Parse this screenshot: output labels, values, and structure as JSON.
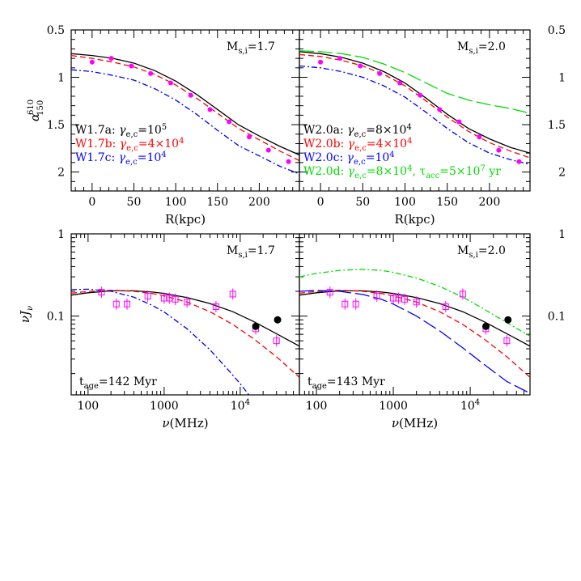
{
  "chart_data": [
    {
      "type": "line",
      "panel": "top-left",
      "xlabel": "R(kpc)",
      "ylabel": "α",
      "ylabel_sup": "610",
      "ylabel_sub": "150",
      "xlim": [
        -25,
        248
      ],
      "ylim": [
        0.5,
        2.2
      ],
      "y_inverted": true,
      "xticks": [
        "0",
        "50",
        "100",
        "150",
        "200"
      ],
      "yticks": [
        "0.5",
        "1",
        "1.5",
        "2"
      ],
      "mach_label": "M",
      "mach_sub": "s,i",
      "mach_value": "=1.7",
      "legend": [
        {
          "name": "W1.7a:",
          "param": "γ",
          "param_sub": "e,c",
          "value": "=10",
          "value_sup": "5",
          "color": "#000000"
        },
        {
          "name": "W1.7b:",
          "param": "γ",
          "param_sub": "e,c",
          "value": "=4×10",
          "value_sup": "4",
          "color": "#ff0000"
        },
        {
          "name": "W1.7c:",
          "param": "γ",
          "param_sub": "e,c",
          "value": "=10",
          "value_sup": "4",
          "color": "#0000ff"
        }
      ],
      "series": [
        {
          "key": "a",
          "color": "#000000",
          "dash": "",
          "x": [
            -25,
            0,
            25,
            50,
            75,
            100,
            125,
            150,
            175,
            200,
            225,
            248
          ],
          "y": [
            0.75,
            0.77,
            0.8,
            0.85,
            0.93,
            1.04,
            1.18,
            1.34,
            1.5,
            1.62,
            1.73,
            1.82
          ]
        },
        {
          "key": "b",
          "color": "#ff0000",
          "dash": "7,4",
          "x": [
            -25,
            0,
            25,
            50,
            75,
            100,
            125,
            150,
            175,
            200,
            225,
            248
          ],
          "y": [
            0.77,
            0.8,
            0.84,
            0.89,
            0.97,
            1.08,
            1.22,
            1.38,
            1.54,
            1.66,
            1.78,
            1.88
          ]
        },
        {
          "key": "c",
          "color": "#0000ff",
          "dash": "7,3,2,3",
          "x": [
            -25,
            0,
            25,
            50,
            75,
            100,
            125,
            150,
            175,
            200,
            225,
            248
          ],
          "y": [
            0.92,
            0.94,
            0.98,
            1.03,
            1.12,
            1.24,
            1.39,
            1.56,
            1.72,
            1.83,
            1.94,
            2.02
          ]
        }
      ],
      "points": {
        "color": "#ff00ff",
        "x": [
          0,
          23,
          47,
          70,
          94,
          118,
          141,
          164,
          188,
          211,
          235
        ],
        "y": [
          0.84,
          0.8,
          0.88,
          0.96,
          1.06,
          1.19,
          1.34,
          1.47,
          1.63,
          1.77,
          1.89
        ]
      }
    },
    {
      "type": "line",
      "panel": "top-right",
      "xlabel": "R(kpc)",
      "xlim": [
        -25,
        248
      ],
      "ylim": [
        0.5,
        2.2
      ],
      "y_inverted": true,
      "xticks": [
        "0",
        "50",
        "100",
        "150",
        "200"
      ],
      "yticks": [
        "0.5",
        "1",
        "1.5",
        "2"
      ],
      "mach_label": "M",
      "mach_sub": "s,i",
      "mach_value": "=2.0",
      "legend": [
        {
          "name": "W2.0a:",
          "param": "γ",
          "param_sub": "e,c",
          "value": "=8×10",
          "value_sup": "4",
          "color": "#000000"
        },
        {
          "name": "W2.0b:",
          "param": "γ",
          "param_sub": "e,c",
          "value": "=4×10",
          "value_sup": "4",
          "color": "#ff0000"
        },
        {
          "name": "W2.0c:",
          "param": "γ",
          "param_sub": "e,c",
          "value": "=10",
          "value_sup": "4",
          "color": "#0000ff"
        },
        {
          "name": "W2.0d:",
          "param": "γ",
          "param_sub": "e,c",
          "value": "=8×10",
          "value_sup": "4",
          "extra": ", τ",
          "extra_sub": "acc",
          "extra_value": "=5×10",
          "extra_sup": "7",
          "extra_unit": " yr",
          "color": "#00dd00"
        }
      ],
      "series": [
        {
          "key": "a",
          "color": "#000000",
          "dash": "",
          "x": [
            -25,
            0,
            25,
            50,
            75,
            100,
            125,
            150,
            175,
            200,
            225,
            248
          ],
          "y": [
            0.73,
            0.75,
            0.79,
            0.85,
            0.94,
            1.06,
            1.22,
            1.39,
            1.54,
            1.65,
            1.74,
            1.8
          ]
        },
        {
          "key": "b",
          "color": "#ff0000",
          "dash": "7,4",
          "x": [
            -25,
            0,
            25,
            50,
            75,
            100,
            125,
            150,
            175,
            200,
            225,
            248
          ],
          "y": [
            0.76,
            0.78,
            0.82,
            0.88,
            0.97,
            1.09,
            1.25,
            1.42,
            1.57,
            1.69,
            1.78,
            1.85
          ]
        },
        {
          "key": "c",
          "color": "#0000ff",
          "dash": "7,3,2,3",
          "x": [
            -25,
            0,
            25,
            50,
            75,
            100,
            125,
            150,
            175,
            200,
            225,
            248
          ],
          "y": [
            0.88,
            0.9,
            0.94,
            1.0,
            1.09,
            1.21,
            1.37,
            1.54,
            1.69,
            1.8,
            1.87,
            1.92
          ]
        },
        {
          "key": "d",
          "color": "#00dd00",
          "dash": "18,5",
          "x": [
            -25,
            0,
            25,
            50,
            75,
            100,
            125,
            150,
            175,
            200,
            225,
            248
          ],
          "y": [
            0.72,
            0.73,
            0.75,
            0.79,
            0.86,
            0.95,
            1.06,
            1.17,
            1.24,
            1.29,
            1.33,
            1.38
          ]
        }
      ],
      "points": {
        "color": "#ff00ff",
        "x": [
          0,
          23,
          47,
          70,
          94,
          118,
          141,
          164,
          188,
          211,
          235
        ],
        "y": [
          0.84,
          0.8,
          0.88,
          0.96,
          1.06,
          1.19,
          1.34,
          1.47,
          1.63,
          1.77,
          1.89
        ]
      }
    },
    {
      "type": "line",
      "panel": "bottom-left",
      "xlabel": "ν(MHz)",
      "ylabel": "νJ",
      "ylabel_sub": "ν",
      "xscale": "log",
      "yscale": "log",
      "xlim": [
        60,
        60000
      ],
      "ylim": [
        0.011,
        1.0
      ],
      "xticks": [
        "100",
        "1000",
        "10",
        "4"
      ],
      "yticks": [
        "1",
        "0.1"
      ],
      "mach_label": "M",
      "mach_sub": "s,i",
      "mach_value": "=1.7",
      "age_label": "t",
      "age_sub": "age",
      "age_value": "=142 Myr",
      "series": [
        {
          "key": "a",
          "color": "#000000",
          "dash": "",
          "x": [
            60,
            100,
            200,
            400,
            700,
            1000,
            2000,
            4000,
            8000,
            15000,
            30000,
            60000
          ],
          "y": [
            0.18,
            0.192,
            0.203,
            0.203,
            0.196,
            0.188,
            0.168,
            0.142,
            0.113,
            0.086,
            0.061,
            0.043
          ]
        },
        {
          "key": "b",
          "color": "#ff0000",
          "dash": "7,4",
          "x": [
            60,
            100,
            200,
            400,
            700,
            1000,
            2000,
            4000,
            8000,
            15000,
            30000,
            60000
          ],
          "y": [
            0.19,
            0.199,
            0.206,
            0.2,
            0.188,
            0.176,
            0.148,
            0.113,
            0.079,
            0.053,
            0.032,
            0.018
          ]
        },
        {
          "key": "c",
          "color": "#0000ff",
          "dash": "7,3,2,3",
          "x": [
            60,
            100,
            200,
            400,
            700,
            1000,
            2000,
            4000,
            7000,
            10000,
            13000
          ],
          "y": [
            0.21,
            0.212,
            0.2,
            0.17,
            0.135,
            0.112,
            0.07,
            0.039,
            0.022,
            0.015,
            0.011
          ]
        }
      ],
      "points_open": {
        "color": "#ff00ff",
        "x": [
          150,
          235,
          325,
          610,
          1000,
          1170,
          1400,
          2000,
          4800,
          8000,
          16000,
          30000
        ],
        "y": [
          0.195,
          0.14,
          0.14,
          0.175,
          0.165,
          0.165,
          0.16,
          0.148,
          0.13,
          0.185,
          0.07,
          0.05
        ]
      },
      "points_filled": {
        "color": "#000000",
        "x": [
          16000,
          31000
        ],
        "y": [
          0.075,
          0.09
        ]
      }
    },
    {
      "type": "line",
      "panel": "bottom-right",
      "xlabel": "ν(MHz)",
      "xscale": "log",
      "yscale": "log",
      "xlim": [
        60,
        60000
      ],
      "ylim": [
        0.011,
        1.0
      ],
      "xticks": [
        "100",
        "1000",
        "10",
        "4"
      ],
      "yticks": [
        "1",
        "0.1"
      ],
      "mach_label": "M",
      "mach_sub": "s,i",
      "mach_value": "=2.0",
      "age_label": "t",
      "age_sub": "age",
      "age_value": "=143 Myr",
      "series": [
        {
          "key": "a",
          "color": "#000000",
          "dash": "",
          "x": [
            60,
            100,
            200,
            400,
            700,
            1000,
            2000,
            4000,
            8000,
            15000,
            30000,
            60000
          ],
          "y": [
            0.18,
            0.192,
            0.203,
            0.203,
            0.196,
            0.188,
            0.168,
            0.142,
            0.113,
            0.086,
            0.061,
            0.043
          ]
        },
        {
          "key": "b",
          "color": "#ff0000",
          "dash": "7,4",
          "x": [
            60,
            100,
            200,
            400,
            700,
            1000,
            2000,
            4000,
            8000,
            15000,
            30000,
            60000
          ],
          "y": [
            0.19,
            0.199,
            0.206,
            0.2,
            0.188,
            0.176,
            0.148,
            0.113,
            0.079,
            0.053,
            0.032,
            0.018
          ]
        },
        {
          "key": "c",
          "color": "#0000ff",
          "dash": "18,5",
          "x": [
            60,
            100,
            200,
            400,
            700,
            1000,
            2000,
            4000,
            8000,
            15000,
            30000,
            60000
          ],
          "y": [
            0.2,
            0.205,
            0.2,
            0.183,
            0.16,
            0.14,
            0.1,
            0.066,
            0.041,
            0.026,
            0.016,
            0.0115
          ]
        },
        {
          "key": "d",
          "color": "#00dd00",
          "dash": "7,3,2,3",
          "x": [
            60,
            100,
            200,
            400,
            700,
            1000,
            2000,
            4000,
            8000,
            15000,
            30000,
            60000
          ],
          "y": [
            0.3,
            0.33,
            0.36,
            0.37,
            0.36,
            0.34,
            0.29,
            0.23,
            0.17,
            0.122,
            0.083,
            0.057
          ]
        }
      ],
      "points_open": {
        "color": "#ff00ff",
        "x": [
          150,
          235,
          325,
          610,
          1000,
          1170,
          1400,
          2000,
          4800,
          8000,
          16000,
          30000
        ],
        "y": [
          0.195,
          0.14,
          0.14,
          0.175,
          0.165,
          0.165,
          0.16,
          0.148,
          0.13,
          0.185,
          0.07,
          0.05
        ]
      },
      "points_filled": {
        "color": "#000000",
        "x": [
          16000,
          31000
        ],
        "y": [
          0.075,
          0.09
        ]
      }
    }
  ]
}
